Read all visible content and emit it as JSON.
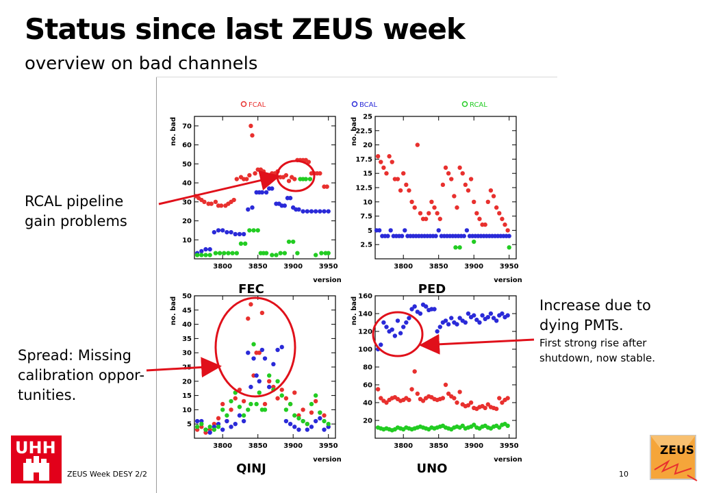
{
  "slide": {
    "title": "Status since last ZEUS week",
    "subtitle": "overview on bad channels",
    "footer_left": "ZEUS Week DESY 2/2",
    "page_number": "10",
    "logo_left_text": "UHH",
    "logo_right_text": "ZEUS"
  },
  "annotations": {
    "rcal": [
      "RCAL pipeline",
      "gain problems"
    ],
    "spread": [
      "Spread: Missing",
      "calibration oppor-",
      "tunities."
    ],
    "increase_main": [
      "Increase due to",
      "dying PMTs."
    ],
    "increase_sub": [
      "First strong rise after",
      "shutdown, now stable."
    ]
  },
  "legend": [
    {
      "name": "FCAL",
      "color": "#e8302e"
    },
    {
      "name": "BCAL",
      "color": "#2a2ad8"
    },
    {
      "name": "RCAL",
      "color": "#22cc22"
    }
  ],
  "colors": {
    "red": "#e8302e",
    "blue": "#2a2ad8",
    "green": "#22cc22",
    "arrow": "#e0101a"
  },
  "chart_data": [
    {
      "type": "scatter",
      "title": "FEC",
      "xlabel": "version",
      "ylabel": "no. bad",
      "xlim": [
        3760,
        3960
      ],
      "ylim": [
        0,
        75
      ],
      "xticks": [
        "3800",
        "3850",
        "3900",
        "3950"
      ],
      "yticks": [
        "10",
        "20",
        "30",
        "40",
        "50",
        "60",
        "70"
      ],
      "series": [
        {
          "name": "FCAL",
          "x": [
            3762,
            3766,
            3770,
            3774,
            3780,
            3784,
            3790,
            3794,
            3798,
            3804,
            3808,
            3812,
            3816,
            3820,
            3826,
            3830,
            3834,
            3838,
            3840,
            3842,
            3846,
            3850,
            3854,
            3858,
            3862,
            3866,
            3870,
            3874,
            3878,
            3882,
            3886,
            3890,
            3894,
            3898,
            3902,
            3906,
            3910,
            3914,
            3918,
            3922,
            3926,
            3930,
            3934,
            3938,
            3944,
            3948
          ],
          "y": [
            33,
            32,
            31,
            30,
            29,
            29,
            30,
            28,
            28,
            28,
            29,
            30,
            31,
            42,
            43,
            42,
            42,
            44,
            70,
            65,
            45,
            47,
            47,
            46,
            44,
            44,
            45,
            45,
            46,
            43,
            43,
            44,
            41,
            43,
            42,
            52,
            52,
            52,
            52,
            51,
            45,
            45,
            45,
            45,
            38,
            38
          ]
        },
        {
          "name": "BCAL",
          "x": [
            3764,
            3770,
            3776,
            3782,
            3788,
            3794,
            3800,
            3806,
            3812,
            3818,
            3824,
            3830,
            3836,
            3842,
            3848,
            3852,
            3856,
            3862,
            3866,
            3870,
            3876,
            3880,
            3884,
            3888,
            3892,
            3896,
            3900,
            3904,
            3908,
            3914,
            3920,
            3926,
            3932,
            3938,
            3944,
            3950
          ],
          "y": [
            3,
            4,
            5,
            5,
            14,
            15,
            15,
            14,
            14,
            13,
            13,
            13,
            26,
            27,
            35,
            35,
            35,
            35,
            37,
            37,
            29,
            29,
            28,
            28,
            32,
            32,
            27,
            26,
            26,
            25,
            25,
            25,
            25,
            25,
            25,
            25
          ]
        },
        {
          "name": "RCAL",
          "x": [
            3764,
            3770,
            3776,
            3782,
            3790,
            3796,
            3802,
            3808,
            3814,
            3820,
            3826,
            3832,
            3838,
            3844,
            3850,
            3854,
            3858,
            3862,
            3870,
            3876,
            3882,
            3888,
            3894,
            3900,
            3906,
            3910,
            3914,
            3918,
            3924,
            3932,
            3940,
            3946,
            3950
          ],
          "y": [
            2,
            2,
            2,
            2,
            3,
            3,
            3,
            3,
            3,
            3,
            8,
            8,
            15,
            15,
            15,
            3,
            3,
            3,
            2,
            2,
            3,
            3,
            9,
            9,
            3,
            42,
            42,
            42,
            42,
            2,
            3,
            3,
            3
          ]
        }
      ]
    },
    {
      "type": "scatter",
      "title": "PED",
      "xlabel": "version",
      "ylabel": "no. bad",
      "xlim": [
        3760,
        3960
      ],
      "ylim": [
        0,
        25
      ],
      "xticks": [
        "3800",
        "3850",
        "3900",
        "3950"
      ],
      "yticks": [
        "2.5",
        "5",
        "7.5",
        "10",
        "12.5",
        "15",
        "17.5",
        "20",
        "22.5",
        "25"
      ],
      "series": [
        {
          "name": "FCAL",
          "x": [
            3764,
            3768,
            3772,
            3776,
            3780,
            3784,
            3788,
            3792,
            3796,
            3800,
            3804,
            3808,
            3812,
            3816,
            3820,
            3824,
            3828,
            3832,
            3836,
            3840,
            3844,
            3848,
            3852,
            3856,
            3860,
            3864,
            3868,
            3872,
            3876,
            3880,
            3884,
            3888,
            3892,
            3896,
            3900,
            3904,
            3908,
            3912,
            3916,
            3920,
            3924,
            3928,
            3932,
            3936,
            3940,
            3944,
            3948
          ],
          "y": [
            18,
            17,
            16,
            15,
            18,
            17,
            14,
            14,
            12,
            15,
            13,
            12,
            10,
            9,
            20,
            8,
            7,
            7,
            8,
            10,
            9,
            8,
            7,
            13,
            16,
            15,
            14,
            11,
            9,
            16,
            15,
            13,
            12,
            14,
            10,
            8,
            7,
            6,
            6,
            10,
            12,
            11,
            9,
            8,
            7,
            6,
            5
          ]
        },
        {
          "name": "BCAL",
          "x": [
            3762,
            3766,
            3770,
            3774,
            3778,
            3782,
            3786,
            3790,
            3794,
            3798,
            3802,
            3806,
            3810,
            3814,
            3818,
            3822,
            3826,
            3830,
            3834,
            3838,
            3842,
            3846,
            3850,
            3854,
            3858,
            3862,
            3866,
            3870,
            3874,
            3878,
            3882,
            3886,
            3890,
            3894,
            3898,
            3902,
            3906,
            3910,
            3914,
            3918,
            3922,
            3926,
            3930,
            3934,
            3938,
            3942,
            3946,
            3950
          ],
          "y": [
            5,
            5,
            4,
            4,
            4,
            5,
            4,
            4,
            4,
            4,
            5,
            4,
            4,
            4,
            4,
            4,
            4,
            4,
            4,
            4,
            4,
            4,
            5,
            4,
            4,
            4,
            4,
            4,
            4,
            4,
            4,
            4,
            5,
            4,
            4,
            4,
            4,
            4,
            4,
            4,
            4,
            4,
            4,
            4,
            4,
            4,
            4,
            4
          ]
        },
        {
          "name": "RCAL",
          "x": [
            3874,
            3880,
            3900,
            3950
          ],
          "y": [
            2,
            2,
            3,
            2
          ]
        }
      ]
    },
    {
      "type": "scatter",
      "title": "QINJ",
      "xlabel": "version",
      "ylabel": "no. bad",
      "xlim": [
        3760,
        3960
      ],
      "ylim": [
        0,
        50
      ],
      "xticks": [
        "3800",
        "3850",
        "3900",
        "3950"
      ],
      "yticks": [
        "5",
        "10",
        "15",
        "20",
        "25",
        "30",
        "35",
        "40",
        "45",
        "50"
      ],
      "series": [
        {
          "name": "FCAL",
          "x": [
            3764,
            3770,
            3776,
            3782,
            3788,
            3794,
            3800,
            3806,
            3812,
            3818,
            3824,
            3830,
            3836,
            3840,
            3844,
            3848,
            3852,
            3856,
            3860,
            3866,
            3872,
            3878,
            3884,
            3890,
            3896,
            3902,
            3908,
            3914,
            3920,
            3926,
            3932,
            3938,
            3944,
            3950
          ],
          "y": [
            3,
            4,
            2,
            3,
            5,
            7,
            12,
            6,
            10,
            14,
            17,
            13,
            42,
            47,
            22,
            30,
            30,
            44,
            12,
            20,
            18,
            14,
            17,
            14,
            12,
            16,
            8,
            10,
            5,
            9,
            13,
            9,
            8,
            4
          ]
        },
        {
          "name": "BCAL",
          "x": [
            3764,
            3770,
            3776,
            3782,
            3788,
            3794,
            3800,
            3806,
            3812,
            3818,
            3824,
            3830,
            3836,
            3840,
            3844,
            3848,
            3852,
            3856,
            3860,
            3866,
            3872,
            3878,
            3884,
            3890,
            3896,
            3902,
            3908,
            3914,
            3920,
            3926,
            3932,
            3938,
            3944,
            3950
          ],
          "y": [
            6,
            6,
            3,
            2,
            4,
            5,
            3,
            6,
            4,
            5,
            8,
            6,
            30,
            18,
            28,
            22,
            20,
            31,
            28,
            18,
            26,
            31,
            32,
            6,
            5,
            4,
            3,
            6,
            3,
            4,
            6,
            7,
            3,
            4
          ]
        },
        {
          "name": "RCAL",
          "x": [
            3764,
            3770,
            3776,
            3782,
            3788,
            3794,
            3800,
            3806,
            3812,
            3818,
            3824,
            3830,
            3836,
            3840,
            3844,
            3848,
            3852,
            3856,
            3860,
            3866,
            3872,
            3878,
            3884,
            3890,
            3896,
            3902,
            3908,
            3914,
            3920,
            3926,
            3932,
            3938,
            3944,
            3950
          ],
          "y": [
            4,
            5,
            3,
            4,
            3,
            4,
            10,
            8,
            13,
            16,
            11,
            8,
            10,
            12,
            33,
            12,
            16,
            10,
            10,
            22,
            17,
            20,
            15,
            10,
            12,
            8,
            7,
            6,
            5,
            12,
            15,
            9,
            6,
            5
          ]
        }
      ]
    },
    {
      "type": "scatter",
      "title": "UNO",
      "xlabel": "version",
      "ylabel": "no. bad",
      "xlim": [
        3760,
        3960
      ],
      "ylim": [
        0,
        160
      ],
      "xticks": [
        "3800",
        "3850",
        "3900",
        "3950"
      ],
      "yticks": [
        "20",
        "40",
        "60",
        "80",
        "100",
        "120",
        "140",
        "160"
      ],
      "series": [
        {
          "name": "FCAL",
          "x": [
            3764,
            3768,
            3772,
            3776,
            3780,
            3784,
            3788,
            3792,
            3796,
            3800,
            3804,
            3808,
            3812,
            3816,
            3820,
            3824,
            3828,
            3832,
            3836,
            3840,
            3844,
            3848,
            3852,
            3856,
            3860,
            3864,
            3868,
            3872,
            3876,
            3880,
            3884,
            3888,
            3892,
            3896,
            3900,
            3904,
            3908,
            3912,
            3916,
            3920,
            3924,
            3928,
            3932,
            3936,
            3940,
            3944,
            3948
          ],
          "y": [
            55,
            45,
            42,
            40,
            43,
            45,
            46,
            44,
            42,
            43,
            45,
            43,
            55,
            75,
            50,
            44,
            42,
            45,
            47,
            46,
            44,
            43,
            44,
            45,
            60,
            50,
            47,
            45,
            40,
            52,
            38,
            36,
            37,
            40,
            34,
            33,
            35,
            36,
            34,
            38,
            35,
            34,
            33,
            45,
            40,
            43,
            45
          ]
        },
        {
          "name": "BCAL",
          "x": [
            3764,
            3768,
            3772,
            3776,
            3780,
            3784,
            3788,
            3792,
            3796,
            3800,
            3804,
            3808,
            3812,
            3816,
            3820,
            3824,
            3828,
            3832,
            3836,
            3840,
            3844,
            3848,
            3852,
            3856,
            3860,
            3864,
            3868,
            3872,
            3876,
            3880,
            3884,
            3888,
            3892,
            3896,
            3900,
            3904,
            3908,
            3912,
            3916,
            3920,
            3924,
            3928,
            3932,
            3936,
            3940,
            3944,
            3948
          ],
          "y": [
            100,
            105,
            130,
            125,
            120,
            122,
            115,
            132,
            118,
            125,
            130,
            135,
            145,
            148,
            142,
            140,
            150,
            148,
            144,
            145,
            145,
            120,
            125,
            130,
            132,
            128,
            135,
            130,
            128,
            135,
            132,
            130,
            140,
            136,
            138,
            133,
            130,
            138,
            134,
            136,
            140,
            135,
            132,
            138,
            140,
            136,
            138
          ]
        },
        {
          "name": "RCAL",
          "x": [
            3764,
            3768,
            3772,
            3776,
            3780,
            3784,
            3788,
            3792,
            3796,
            3800,
            3804,
            3808,
            3812,
            3816,
            3820,
            3824,
            3828,
            3832,
            3836,
            3840,
            3844,
            3848,
            3852,
            3856,
            3860,
            3864,
            3868,
            3872,
            3876,
            3880,
            3884,
            3888,
            3892,
            3896,
            3900,
            3904,
            3908,
            3912,
            3916,
            3920,
            3924,
            3928,
            3932,
            3936,
            3940,
            3944,
            3948
          ],
          "y": [
            12,
            11,
            10,
            11,
            10,
            9,
            10,
            12,
            11,
            10,
            12,
            11,
            10,
            11,
            12,
            13,
            12,
            11,
            10,
            12,
            11,
            12,
            13,
            14,
            12,
            11,
            10,
            12,
            13,
            12,
            14,
            11,
            12,
            13,
            15,
            12,
            11,
            13,
            14,
            12,
            11,
            13,
            14,
            12,
            15,
            16,
            14
          ]
        }
      ]
    }
  ]
}
